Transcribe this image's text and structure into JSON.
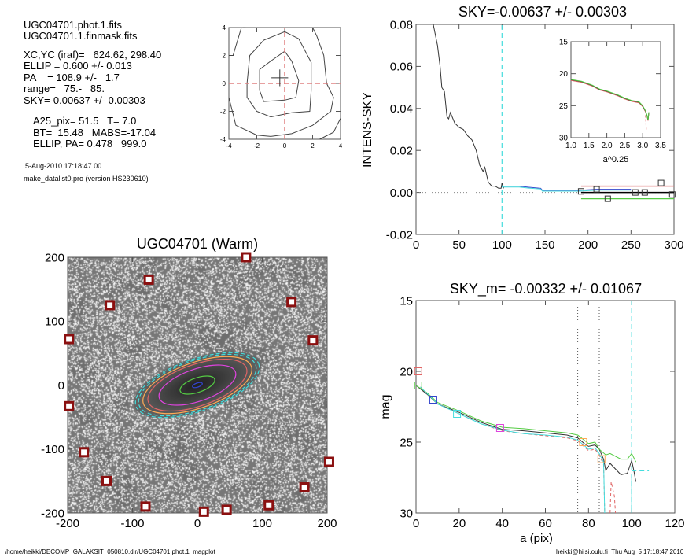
{
  "info": {
    "file1": "UGC04701.phot.1.fits",
    "file2": "UGC04701.1.finmask.fits",
    "xcyc": "XC,YC (iraf)=   624.62, 298.40",
    "ellip": "ELLIP = 0.600 +/- 0.013",
    "pa": "PA    = 108.9 +/-   1.7",
    "range": "range=   75.-   85.",
    "sky": "SKY=-0.00637 +/- 0.00303",
    "a25": "A25_pix= 51.5   T= 7.0",
    "bt": "BT=  15.48   MABS=-17.04",
    "ellippa": "ELLIP, PA= 0.478   999.0",
    "date": "5-Aug-2010 17:18:47.00",
    "program": "make_datalist0.pro (version HS230610)"
  },
  "footer": {
    "path": "/home/heikki/DECOMP_GALAKSIT_050810.dir/UGC04701.phot.1_magplot",
    "user": "heikki@hiisi.oulu.fi  Thu Aug  5 17:18:47 2010"
  },
  "colors": {
    "red": "#e06666",
    "green": "#55cc44",
    "cyan": "#44dddd",
    "blue": "#3344cc",
    "magenta": "#dd44dd",
    "orange": "#ffaa55"
  },
  "chart_data": [
    {
      "id": "centre",
      "type": "line",
      "title": "",
      "xlim": [
        -4,
        4
      ],
      "ylim": [
        -4,
        4
      ],
      "xticks": [
        -4,
        -2,
        0,
        2,
        4
      ],
      "yticks": [
        -4,
        -2,
        0,
        2,
        4
      ],
      "contours": [
        [
          [
            -1.8,
            1
          ],
          [
            -1,
            1.6
          ],
          [
            0,
            2.3
          ],
          [
            0.5,
            1.6
          ],
          [
            1,
            0.2
          ],
          [
            0.8,
            -1
          ],
          [
            0,
            -1.2
          ],
          [
            -1.5,
            -1.3
          ],
          [
            -1.8,
            -0.5
          ],
          [
            -1.8,
            1
          ]
        ],
        [
          [
            -2.7,
            0
          ],
          [
            -2.5,
            2
          ],
          [
            -1.5,
            3.1
          ],
          [
            0,
            3.7
          ],
          [
            1,
            3.2
          ],
          [
            1.9,
            1.5
          ],
          [
            1.9,
            -0.5
          ],
          [
            1.8,
            -2
          ],
          [
            0.5,
            -2.1
          ],
          [
            -1,
            -2.4
          ],
          [
            -2,
            -2
          ],
          [
            -2.7,
            -1
          ],
          [
            -2.7,
            0
          ]
        ],
        [
          [
            -4,
            2
          ],
          [
            -3.7,
            2
          ],
          [
            -3.1,
            4
          ]
        ],
        [
          [
            -4,
            -1
          ],
          [
            -3.5,
            -3
          ],
          [
            -2,
            -3.7
          ],
          [
            -1,
            -3.8
          ],
          [
            0.5,
            -3.6
          ],
          [
            2,
            -3
          ],
          [
            3.3,
            -2
          ],
          [
            3.5,
            -1
          ],
          [
            3,
            0
          ],
          [
            2.8,
            2
          ],
          [
            2.3,
            3.4
          ],
          [
            2,
            4
          ]
        ],
        [
          [
            2.5,
            -4
          ],
          [
            3.5,
            -3.5
          ],
          [
            4,
            -2.5
          ]
        ],
        [
          [
            -3,
            4
          ],
          [
            -2.8,
            4
          ]
        ]
      ],
      "center": [
        -0.35,
        0.4
      ]
    },
    {
      "id": "intens",
      "type": "line",
      "title": "SKY=-0.00637 +/- 0.00303",
      "xlabel": "",
      "ylabel": "INTENS-SKY",
      "xlim": [
        0,
        300
      ],
      "ylim": [
        -0.02,
        0.08
      ],
      "xticks": [
        0,
        50,
        100,
        150,
        200,
        250,
        300
      ],
      "yticks": [
        "-0.02",
        "0.00",
        "0.02",
        "0.04",
        "0.06",
        "0.08"
      ],
      "profile": [
        [
          20,
          0.08
        ],
        [
          25,
          0.07
        ],
        [
          28,
          0.06
        ],
        [
          30,
          0.05
        ],
        [
          33,
          0.048
        ],
        [
          36,
          0.036
        ],
        [
          38,
          0.035
        ],
        [
          40,
          0.038
        ],
        [
          45,
          0.033
        ],
        [
          50,
          0.031
        ],
        [
          55,
          0.03
        ],
        [
          60,
          0.027
        ],
        [
          65,
          0.025
        ],
        [
          70,
          0.02
        ],
        [
          74,
          0.013
        ],
        [
          78,
          0.01
        ],
        [
          80,
          0.012
        ],
        [
          84,
          0.005
        ],
        [
          88,
          0.003
        ],
        [
          92,
          0.003
        ],
        [
          96,
          0.002
        ],
        [
          99,
          0.002
        ],
        [
          100,
          0.0045
        ],
        [
          102,
          0.002
        ]
      ],
      "outer": [
        [
          100,
          0.003
        ],
        [
          120,
          0.003
        ],
        [
          130,
          0.0025
        ],
        [
          145,
          0.002
        ],
        [
          147,
          0.001
        ],
        [
          190,
          0.001
        ],
        [
          210,
          0.0015
        ],
        [
          250,
          0.0015
        ]
      ],
      "sky_points": [
        [
          192,
          0.0005
        ],
        [
          210,
          0.0015
        ],
        [
          223,
          -0.003
        ],
        [
          255,
          0
        ],
        [
          266,
          0
        ],
        [
          285,
          0.0045
        ],
        [
          298,
          -0.001
        ]
      ],
      "sky_level": 0,
      "sky_upper": 0.003,
      "sky_lower": -0.003,
      "vline": 100,
      "inset": {
        "xlabel": "a^0.25",
        "xlim": [
          1.0,
          3.5
        ],
        "ylim": [
          15,
          30
        ],
        "xticks": [
          "1.0",
          "1.5",
          "2.0",
          "2.5",
          "3.0",
          "3.5"
        ],
        "yticks": [
          "15",
          "20",
          "25",
          "30"
        ],
        "curve": [
          [
            1.0,
            20.9
          ],
          [
            1.3,
            21.2
          ],
          [
            1.6,
            21.8
          ],
          [
            1.8,
            22.4
          ],
          [
            2.0,
            22.7
          ],
          [
            2.3,
            23.3
          ],
          [
            2.5,
            23.8
          ],
          [
            2.7,
            24.2
          ],
          [
            2.9,
            24.4
          ],
          [
            3.0,
            25.0
          ],
          [
            3.08,
            25.8
          ],
          [
            3.12,
            26.5
          ],
          [
            3.15,
            27.2
          ],
          [
            3.17,
            26
          ]
        ]
      }
    },
    {
      "id": "mag",
      "type": "line",
      "title": "SKY_m= -0.00332 +/- 0.01067",
      "xlabel": "a (pix)",
      "ylabel": "mag",
      "xlim": [
        0,
        120
      ],
      "ylim": [
        15,
        30
      ],
      "xticks": [
        0,
        20,
        40,
        60,
        80,
        100,
        120
      ],
      "yticks": [
        15,
        20,
        25,
        30
      ],
      "series": [
        {
          "name": "profile",
          "color": "#333333",
          "values": [
            [
              0,
              21
            ],
            [
              5,
              21.6
            ],
            [
              10,
              22.3
            ],
            [
              20,
              22.9
            ],
            [
              30,
              23.6
            ],
            [
              40,
              24.1
            ],
            [
              50,
              24.2
            ],
            [
              60,
              24.35
            ],
            [
              70,
              24.5
            ],
            [
              75,
              24.7
            ],
            [
              78,
              25.1
            ],
            [
              80,
              25.3
            ],
            [
              83,
              25.2
            ],
            [
              85,
              25.5
            ],
            [
              87,
              26.2
            ],
            [
              88,
              27
            ],
            [
              90,
              26.5
            ],
            [
              95,
              27.3
            ],
            [
              98,
              27.2
            ],
            [
              100,
              26.3
            ],
            [
              101,
              27
            ],
            [
              102,
              27.8
            ]
          ]
        },
        {
          "name": "upper",
          "color": "#55cc44",
          "values": [
            [
              0,
              21
            ],
            [
              5,
              21.5
            ],
            [
              10,
              22.2
            ],
            [
              20,
              22.8
            ],
            [
              30,
              23.5
            ],
            [
              40,
              23.95
            ],
            [
              50,
              24.05
            ],
            [
              60,
              24.2
            ],
            [
              70,
              24.35
            ],
            [
              75,
              24.5
            ],
            [
              80,
              25.1
            ],
            [
              83,
              25.0
            ],
            [
              85,
              25.5
            ],
            [
              88,
              25.9
            ],
            [
              90,
              25.8
            ],
            [
              95,
              26.2
            ],
            [
              98,
              26.2
            ],
            [
              100,
              25.8
            ],
            [
              102,
              26.4
            ]
          ]
        },
        {
          "name": "lower",
          "color": "#e06666",
          "dash": "4,3",
          "values": [
            [
              2,
              21.1
            ],
            [
              10,
              22.3
            ],
            [
              20,
              23
            ],
            [
              30,
              23.7
            ],
            [
              40,
              24.2
            ],
            [
              50,
              24.4
            ],
            [
              60,
              24.55
            ],
            [
              70,
              24.7
            ],
            [
              75,
              24.9
            ],
            [
              80,
              25.6
            ],
            [
              83,
              25.5
            ],
            [
              85,
              25.9
            ],
            [
              87,
              26.6
            ],
            [
              87.5,
              30
            ]
          ]
        },
        {
          "name": "lower2",
          "color": "#44dddd",
          "values": [
            [
              2,
              21.1
            ],
            [
              10,
              22.3
            ],
            [
              20,
              23
            ],
            [
              30,
              23.7
            ],
            [
              40,
              24.15
            ],
            [
              50,
              24.4
            ],
            [
              60,
              24.5
            ],
            [
              70,
              24.65
            ],
            [
              75,
              24.85
            ],
            [
              80,
              25.5
            ],
            [
              83,
              25.4
            ],
            [
              85,
              25.8
            ],
            [
              87,
              26.4
            ],
            [
              87.5,
              30
            ]
          ]
        },
        {
          "name": "lower-tail",
          "color": "#e06666",
          "dash": "4,3",
          "values": [
            [
              90,
              30
            ],
            [
              90.5,
              27.8
            ],
            [
              92,
              28.8
            ],
            [
              92.5,
              30
            ]
          ]
        },
        {
          "name": "lower-tail2",
          "color": "#44dddd",
          "values": [
            [
              100,
              30
            ],
            [
              100,
              27.3
            ]
          ]
        }
      ],
      "points": [
        [
          1,
          20,
          "#e06666"
        ],
        [
          1,
          21,
          "#55cc44"
        ],
        [
          8,
          22,
          "#3344cc"
        ],
        [
          19,
          23,
          "#44dddd"
        ],
        [
          39,
          24,
          "#dd44dd"
        ],
        [
          77.5,
          25,
          "#ffaa55"
        ],
        [
          86,
          26.2,
          "#ffaa55"
        ]
      ],
      "dotted_vlines": [
        75,
        85
      ],
      "vline": 100,
      "sky_mag_line": [
        [
          100,
          108
        ],
        27
      ]
    },
    {
      "id": "image",
      "type": "scatter",
      "title": "UGC04701 (Warm)",
      "xlim": [
        -200,
        200
      ],
      "ylim": [
        -200,
        200
      ],
      "xticks": [
        -200,
        -100,
        0,
        100,
        200
      ],
      "yticks": [
        -200,
        -100,
        0,
        100,
        200
      ],
      "pa_deg": 108.9,
      "ellip": 0.6,
      "ellipses": [
        [
          100,
          "#44dddd"
        ],
        [
          95,
          "#44dddd"
        ],
        [
          88,
          "#ffaa55"
        ],
        [
          80,
          "#e06666"
        ],
        [
          62,
          "#dd44dd"
        ],
        [
          28,
          "#55cc44"
        ],
        [
          8,
          "#3344cc"
        ]
      ],
      "masked": [
        [
          -75,
          165
        ],
        [
          75,
          200
        ],
        [
          -135,
          125
        ],
        [
          145,
          130
        ],
        [
          -198,
          72
        ],
        [
          178,
          70
        ],
        [
          -198,
          -33
        ],
        [
          -175,
          -105
        ],
        [
          -140,
          -150
        ],
        [
          -80,
          -190
        ],
        [
          10,
          -198
        ],
        [
          45,
          -195
        ],
        [
          110,
          -188
        ],
        [
          165,
          -160
        ],
        [
          203,
          -120
        ]
      ]
    }
  ]
}
